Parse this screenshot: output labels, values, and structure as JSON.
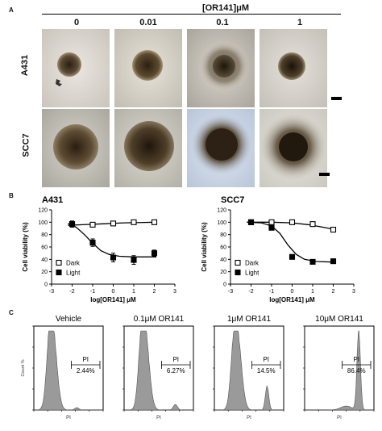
{
  "panel_labels": {
    "a": "A",
    "b": "B",
    "c": "C"
  },
  "panel_a": {
    "concentration_header": "[OR141]μM",
    "columns": [
      "0",
      "0.01",
      "0.1",
      "1"
    ],
    "rows": [
      "A431",
      "SCC7"
    ]
  },
  "chart_data": [
    {
      "type": "scatter",
      "title": "A431",
      "xlabel": "log[OR141] μM",
      "ylabel": "Cell viability (%)",
      "xlim": [
        -3,
        3
      ],
      "ylim": [
        0,
        120
      ],
      "xticks": [
        -3,
        -2,
        -1,
        0,
        1,
        2,
        3
      ],
      "yticks": [
        0,
        20,
        40,
        60,
        80,
        100,
        120
      ],
      "legend_position": "bottom-left",
      "series": [
        {
          "name": "Dark",
          "marker": "open-square",
          "x": [
            -2,
            -1,
            0,
            1,
            2
          ],
          "y": [
            97,
            96,
            98,
            100,
            100
          ],
          "err": [
            3,
            2,
            2,
            2,
            2
          ],
          "fit": [
            [
              -2.2,
              95
            ],
            [
              -1.5,
              96
            ],
            [
              -0.5,
              97.5
            ],
            [
              0.5,
              99
            ],
            [
              1.5,
              99.7
            ],
            [
              2.1,
              100
            ]
          ]
        },
        {
          "name": "Light",
          "marker": "filled-square",
          "x": [
            -2,
            -1,
            0,
            1,
            2
          ],
          "y": [
            97,
            67,
            43,
            39,
            50
          ],
          "err": [
            5,
            6,
            7,
            7,
            5
          ],
          "fit": [
            [
              -2.2,
              98
            ],
            [
              -1.8,
              92
            ],
            [
              -1.4,
              80
            ],
            [
              -1.0,
              66
            ],
            [
              -0.6,
              54
            ],
            [
              -0.2,
              48
            ],
            [
              0.3,
              45
            ],
            [
              1.0,
              44
            ],
            [
              2.1,
              44
            ]
          ]
        }
      ]
    },
    {
      "type": "scatter",
      "title": "SCC7",
      "xlabel": "log[OR141] μM",
      "ylabel": "Cell viability (%)",
      "xlim": [
        -3,
        3
      ],
      "ylim": [
        0,
        120
      ],
      "xticks": [
        -3,
        -2,
        -1,
        0,
        1,
        2,
        3
      ],
      "yticks": [
        0,
        20,
        40,
        60,
        80,
        100,
        120
      ],
      "legend_position": "bottom-left",
      "series": [
        {
          "name": "Dark",
          "marker": "open-square",
          "x": [
            -2,
            -1,
            0,
            1,
            2
          ],
          "y": [
            100,
            100,
            100,
            97,
            88
          ],
          "err": [
            2,
            2,
            2,
            2,
            3
          ],
          "fit": [
            [
              -2.2,
              100
            ],
            [
              -1,
              100
            ],
            [
              0,
              99
            ],
            [
              0.8,
              96
            ],
            [
              1.5,
              92
            ],
            [
              2.1,
              88
            ]
          ]
        },
        {
          "name": "Light",
          "marker": "filled-square",
          "x": [
            -2,
            -1,
            0,
            1,
            2
          ],
          "y": [
            100,
            91,
            44,
            36,
            37
          ],
          "err": [
            2,
            3,
            3,
            2,
            3
          ],
          "fit": [
            [
              -2.2,
              100
            ],
            [
              -1.5,
              99
            ],
            [
              -1.0,
              94
            ],
            [
              -0.6,
              82
            ],
            [
              -0.2,
              63
            ],
            [
              0.2,
              48
            ],
            [
              0.6,
              40
            ],
            [
              1.2,
              36.5
            ],
            [
              2.1,
              35.5
            ]
          ]
        }
      ]
    },
    {
      "type": "area",
      "title": "Vehicle",
      "ylabel": "Count %",
      "xlabel": "PI",
      "gate_label": "PI",
      "gate_value": "2.44%",
      "shape": "main-peak-only"
    },
    {
      "type": "area",
      "title": "0.1μM OR141",
      "ylabel": "",
      "xlabel": "PI",
      "gate_label": "PI",
      "gate_value": "6.27%",
      "shape": "main-peak-small-shoulder"
    },
    {
      "type": "area",
      "title": "1μM OR141",
      "ylabel": "",
      "xlabel": "PI",
      "gate_label": "PI",
      "gate_value": "14.5%",
      "shape": "main-peak-plus-small-high-peak"
    },
    {
      "type": "area",
      "title": "10μM OR141",
      "ylabel": "",
      "xlabel": "PI",
      "gate_label": "PI",
      "gate_value": "86.4%",
      "shape": "high-peak-only"
    }
  ]
}
